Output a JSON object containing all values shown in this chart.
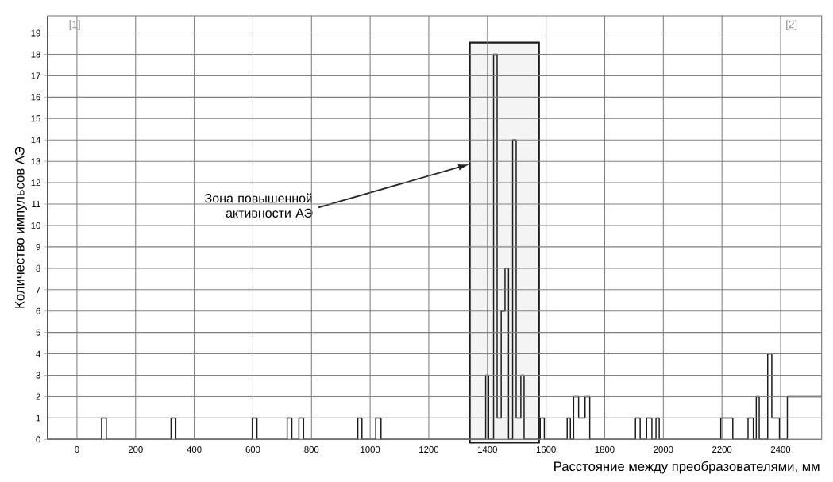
{
  "chart_data": {
    "type": "step",
    "xlabel": "Расстояние между преобразователями, мм",
    "ylabel": "Количество импульсов АЭ",
    "x": [
      -100,
      84,
      100,
      321,
      337,
      598,
      614,
      717,
      733,
      757,
      773,
      958,
      972,
      1019,
      1037,
      1394,
      1404,
      1421,
      1433,
      1447,
      1460,
      1472,
      1486,
      1498,
      1514,
      1525,
      1580,
      1594,
      1672,
      1683,
      1694,
      1711,
      1733,
      1749,
      1905,
      1921,
      1943,
      1961,
      1975,
      1986,
      2196,
      2237,
      2289,
      2307,
      2317,
      2327,
      2356,
      2370,
      2396,
      2423,
      2540
    ],
    "values": [
      0,
      1,
      0,
      1,
      0,
      1,
      0,
      1,
      0,
      1,
      0,
      1,
      0,
      1,
      0,
      3,
      0,
      18,
      1,
      6,
      8,
      0,
      14,
      1,
      3,
      0,
      1,
      0,
      1,
      0,
      2,
      1,
      2,
      0,
      1,
      0,
      1,
      0,
      1,
      0,
      1,
      0,
      1,
      0,
      2,
      0,
      4,
      1,
      0,
      2,
      2
    ],
    "color": "#1a1a1a",
    "xlim": [
      -100,
      2540
    ],
    "ylim": [
      0,
      19.8
    ],
    "xticks": [
      0,
      200,
      400,
      600,
      800,
      1000,
      1200,
      1400,
      1600,
      1800,
      2000,
      2200,
      2400
    ],
    "yticks": [
      0,
      1,
      2,
      3,
      4,
      5,
      6,
      7,
      8,
      9,
      10,
      11,
      12,
      13,
      14,
      15,
      16,
      17,
      18,
      19
    ],
    "grid": true,
    "bands": [
      {
        "axis": "x",
        "from": 1340,
        "to": 1576,
        "color": "#1a1a1a"
      }
    ],
    "annotations": [
      "[1]",
      "[2]",
      "Зона повышенной активности АЭ"
    ]
  }
}
